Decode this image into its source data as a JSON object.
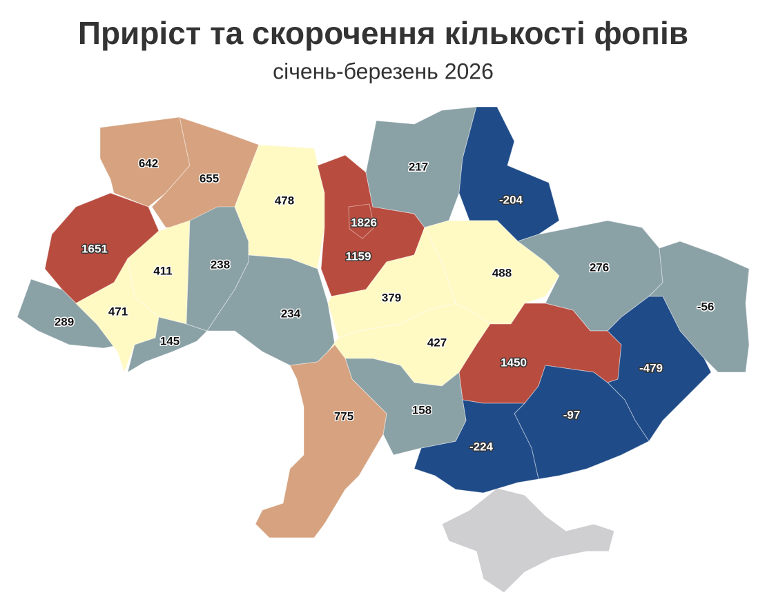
{
  "header": {
    "title": "Приріст та скорочення кількості фопів",
    "subtitle": "січень-березень 2026"
  },
  "map": {
    "regions": [
      {
        "value": 642,
        "color": "#d6a27f"
      },
      {
        "value": 655,
        "color": "#d6a27f"
      },
      {
        "value": 1651,
        "color": "#b84c3f"
      },
      {
        "value": 411,
        "color": "#fff9c4"
      },
      {
        "value": 289,
        "color": "#8aa1a6"
      },
      {
        "value": 471,
        "color": "#fff9c4"
      },
      {
        "value": 145,
        "color": "#8aa1a6"
      },
      {
        "value": 238,
        "color": "#8aa1a6"
      },
      {
        "value": 478,
        "color": "#fff9c4"
      },
      {
        "value": 234,
        "color": "#8aa1a6"
      },
      {
        "value": 1826,
        "color": "#b84c3f"
      },
      {
        "value": 1159,
        "color": "#b84c3f"
      },
      {
        "value": 217,
        "color": "#8aa1a6"
      },
      {
        "value": -204,
        "color": "#1f4b88"
      },
      {
        "value": 379,
        "color": "#fff9c4"
      },
      {
        "value": 488,
        "color": "#fff9c4"
      },
      {
        "value": 276,
        "color": "#8aa1a6"
      },
      {
        "value": -56,
        "color": "#8aa1a6"
      },
      {
        "value": 427,
        "color": "#fff9c4"
      },
      {
        "value": 1450,
        "color": "#b84c3f"
      },
      {
        "value": -479,
        "color": "#1f4b88"
      },
      {
        "value": -97,
        "color": "#1f4b88"
      },
      {
        "value": -224,
        "color": "#1f4b88"
      },
      {
        "value": 158,
        "color": "#8aa1a6"
      },
      {
        "value": 775,
        "color": "#d6a27f"
      }
    ]
  }
}
